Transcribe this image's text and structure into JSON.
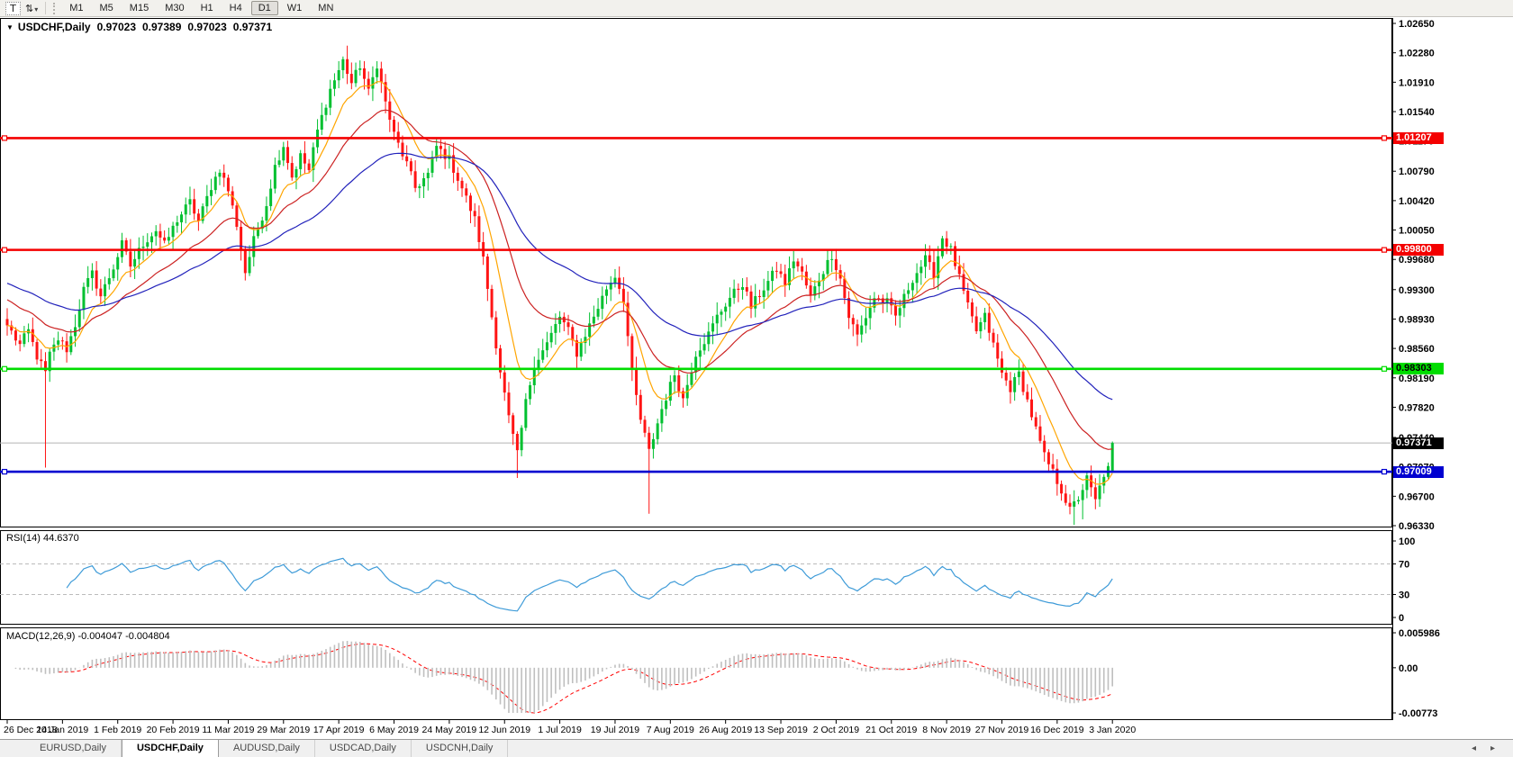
{
  "toolbar": {
    "text_tool_label": "T",
    "timeframes": [
      "M1",
      "M5",
      "M15",
      "M30",
      "H1",
      "H4",
      "D1",
      "W1",
      "MN"
    ],
    "active_timeframe": "D1"
  },
  "icons": {
    "chart_dropdown": "▼",
    "cursor_tool": "⇅",
    "dropdown_caret": "▾",
    "tabs_scroll_left": "◂",
    "tabs_scroll_right": "▸"
  },
  "chart_header": {
    "symbol": "USDCHF,Daily",
    "open": "0.97023",
    "high": "0.97389",
    "low": "0.97023",
    "close": "0.97371"
  },
  "indicators": {
    "rsi_label": "RSI(14) 44.6370",
    "macd_label": "MACD(12,26,9) -0.004047 -0.004804"
  },
  "tabs": {
    "items": [
      "EURUSD,Daily",
      "USDCHF,Daily",
      "AUDUSD,Daily",
      "USDCAD,Daily",
      "USDCNH,Daily"
    ],
    "active": "USDCHF,Daily"
  },
  "chart_data": {
    "type": "candlestick",
    "symbol": "USDCHF",
    "timeframe": "Daily",
    "ohlc": {
      "open": 0.97023,
      "high": 0.97389,
      "low": 0.97023,
      "close": 0.97371
    },
    "bar_count": 261,
    "y_axis": {
      "max": 1.0265,
      "min": 0.9633,
      "ticks": [
        "1.02650",
        "1.02280",
        "1.01910",
        "1.01540",
        "1.01170",
        "1.00790",
        "1.00420",
        "1.00050",
        "0.99680",
        "0.99300",
        "0.98930",
        "0.98560",
        "0.98190",
        "0.97820",
        "0.97440",
        "0.97070",
        "0.96700",
        "0.96330"
      ]
    },
    "x_axis": {
      "bars_per_label": 13,
      "labels": [
        "26 Dec 2018",
        "14 Jan 2019",
        "1 Feb 2019",
        "20 Feb 2019",
        "11 Mar 2019",
        "29 Mar 2019",
        "17 Apr 2019",
        "6 May 2019",
        "24 May 2019",
        "12 Jun 2019",
        "1 Jul 2019",
        "19 Jul 2019",
        "7 Aug 2019",
        "26 Aug 2019",
        "13 Sep 2019",
        "2 Oct 2019",
        "21 Oct 2019",
        "8 Nov 2019",
        "27 Nov 2019",
        "16 Dec 2019",
        "3 Jan 2020"
      ]
    },
    "horizontal_lines": [
      {
        "price": 1.01207,
        "label": "1.01207",
        "color": "#F40000",
        "text_color": "#FFFFFF",
        "type": "resistance"
      },
      {
        "price": 0.998,
        "label": "0.99800",
        "color": "#F40000",
        "text_color": "#FFFFFF",
        "type": "resistance"
      },
      {
        "price": 0.98303,
        "label": "0.98303",
        "color": "#00DD00",
        "text_color": "#000000",
        "type": "support"
      },
      {
        "price": 0.97009,
        "label": "0.97009",
        "color": "#0000D0",
        "text_color": "#FFFFFF",
        "type": "support"
      }
    ],
    "current_price": {
      "value": 0.97371,
      "label": "0.97371",
      "line_color": "#B4B4B4",
      "box_color": "#000000",
      "text_color": "#FFFFFF"
    },
    "last_bar": {
      "open": 0.97023,
      "high": 0.97389,
      "low": 0.97023,
      "close": 0.97371
    },
    "price_path_anchors": [
      [
        0,
        0.9885
      ],
      [
        3,
        0.986
      ],
      [
        5,
        0.9878
      ],
      [
        7,
        0.9846
      ],
      [
        9,
        0.9825
      ],
      [
        10,
        0.9848
      ],
      [
        12,
        0.9868
      ],
      [
        14,
        0.9855
      ],
      [
        16,
        0.9886
      ],
      [
        18,
        0.993
      ],
      [
        20,
        0.995
      ],
      [
        22,
        0.9922
      ],
      [
        25,
        0.9958
      ],
      [
        27,
        0.9987
      ],
      [
        29,
        0.996
      ],
      [
        32,
        0.9988
      ],
      [
        35,
        1.0005
      ],
      [
        37,
        0.9986
      ],
      [
        40,
        1.0018
      ],
      [
        43,
        1.004
      ],
      [
        45,
        1.0016
      ],
      [
        48,
        1.006
      ],
      [
        50,
        1.0082
      ],
      [
        52,
        1.0055
      ],
      [
        54,
        1.0012
      ],
      [
        56,
        0.9952
      ],
      [
        58,
        0.9992
      ],
      [
        61,
        1.0038
      ],
      [
        63,
        1.0085
      ],
      [
        65,
        1.0112
      ],
      [
        67,
        1.0072
      ],
      [
        69,
        1.0098
      ],
      [
        71,
        1.008
      ],
      [
        73,
        1.013
      ],
      [
        76,
        1.0182
      ],
      [
        79,
        1.0218
      ],
      [
        81,
        1.019
      ],
      [
        83,
        1.0212
      ],
      [
        85,
        1.0178
      ],
      [
        87,
        1.0214
      ],
      [
        89,
        1.0165
      ],
      [
        91,
        1.0125
      ],
      [
        94,
        1.0088
      ],
      [
        96,
        1.0058
      ],
      [
        99,
        1.0075
      ],
      [
        101,
        1.011
      ],
      [
        104,
        1.0094
      ],
      [
        107,
        1.0058
      ],
      [
        110,
        1.0018
      ],
      [
        112,
        0.9968
      ],
      [
        114,
        0.9896
      ],
      [
        116,
        0.9828
      ],
      [
        118,
        0.9768
      ],
      [
        120,
        0.9722
      ],
      [
        122,
        0.9788
      ],
      [
        124,
        0.9836
      ],
      [
        127,
        0.9862
      ],
      [
        130,
        0.9896
      ],
      [
        132,
        0.9878
      ],
      [
        134,
        0.985
      ],
      [
        136,
        0.9874
      ],
      [
        139,
        0.9908
      ],
      [
        141,
        0.9932
      ],
      [
        143,
        0.9948
      ],
      [
        145,
        0.9918
      ],
      [
        147,
        0.9824
      ],
      [
        149,
        0.9766
      ],
      [
        151,
        0.9726
      ],
      [
        154,
        0.978
      ],
      [
        157,
        0.9824
      ],
      [
        159,
        0.9792
      ],
      [
        162,
        0.985
      ],
      [
        165,
        0.9874
      ],
      [
        167,
        0.9896
      ],
      [
        170,
        0.992
      ],
      [
        173,
        0.9938
      ],
      [
        175,
        0.9908
      ],
      [
        178,
        0.9932
      ],
      [
        181,
        0.9956
      ],
      [
        183,
        0.9938
      ],
      [
        185,
        0.9968
      ],
      [
        187,
        0.995
      ],
      [
        189,
        0.992
      ],
      [
        191,
        0.9944
      ],
      [
        194,
        0.9974
      ],
      [
        196,
        0.9944
      ],
      [
        198,
        0.9896
      ],
      [
        200,
        0.9872
      ],
      [
        202,
        0.9896
      ],
      [
        204,
        0.992
      ],
      [
        207,
        0.9914
      ],
      [
        209,
        0.9896
      ],
      [
        211,
        0.992
      ],
      [
        213,
        0.9944
      ],
      [
        216,
        0.9968
      ],
      [
        218,
        0.995
      ],
      [
        220,
        0.9996
      ],
      [
        222,
        0.998
      ],
      [
        224,
        0.9944
      ],
      [
        226,
        0.9908
      ],
      [
        228,
        0.9878
      ],
      [
        230,
        0.9896
      ],
      [
        232,
        0.986
      ],
      [
        234,
        0.9824
      ],
      [
        236,
        0.9806
      ],
      [
        238,
        0.9824
      ],
      [
        240,
        0.979
      ],
      [
        242,
        0.9754
      ],
      [
        244,
        0.972
      ],
      [
        246,
        0.97
      ],
      [
        248,
        0.9678
      ],
      [
        250,
        0.9652
      ],
      [
        252,
        0.9668
      ],
      [
        254,
        0.9692
      ],
      [
        256,
        0.9664
      ],
      [
        258,
        0.9698
      ],
      [
        259,
        0.9704
      ],
      [
        260,
        0.97371
      ]
    ],
    "special_wicks": [
      {
        "bar": 9,
        "low": 0.9706
      },
      {
        "bar": 80,
        "high": 1.0237
      },
      {
        "bar": 120,
        "low": 0.9693
      },
      {
        "bar": 151,
        "low": 0.9648
      },
      {
        "bar": 251,
        "low": 0.9634
      },
      {
        "bar": 253,
        "low": 0.9641
      }
    ],
    "moving_averages": [
      {
        "name": "fast",
        "period": 10,
        "color": "#FFA500",
        "init": 0.9885
      },
      {
        "name": "medium",
        "period": 25,
        "color": "#CC2222",
        "init": 0.992
      },
      {
        "name": "slow",
        "period": 55,
        "color": "#2222BB",
        "init": 0.994
      }
    ],
    "rsi": {
      "period": 14,
      "value": 44.637,
      "color": "#3E9BD8",
      "levels": [
        "100",
        "70",
        "30",
        "0"
      ],
      "dashed_levels": [
        "70",
        "30"
      ]
    },
    "macd": {
      "fast": 12,
      "slow": 26,
      "signal": 9,
      "value": -0.004047,
      "signal_value": -0.004804,
      "axis_labels": [
        "0.005986",
        "0.00",
        "-0.00773"
      ],
      "hist_color": "#BFBFBF",
      "signal_color": "#FF0000"
    },
    "colors": {
      "bull": "#00C030",
      "bear": "#FF1414",
      "panel_border": "#000000",
      "grid_dashed": "#BBBBBB"
    }
  }
}
